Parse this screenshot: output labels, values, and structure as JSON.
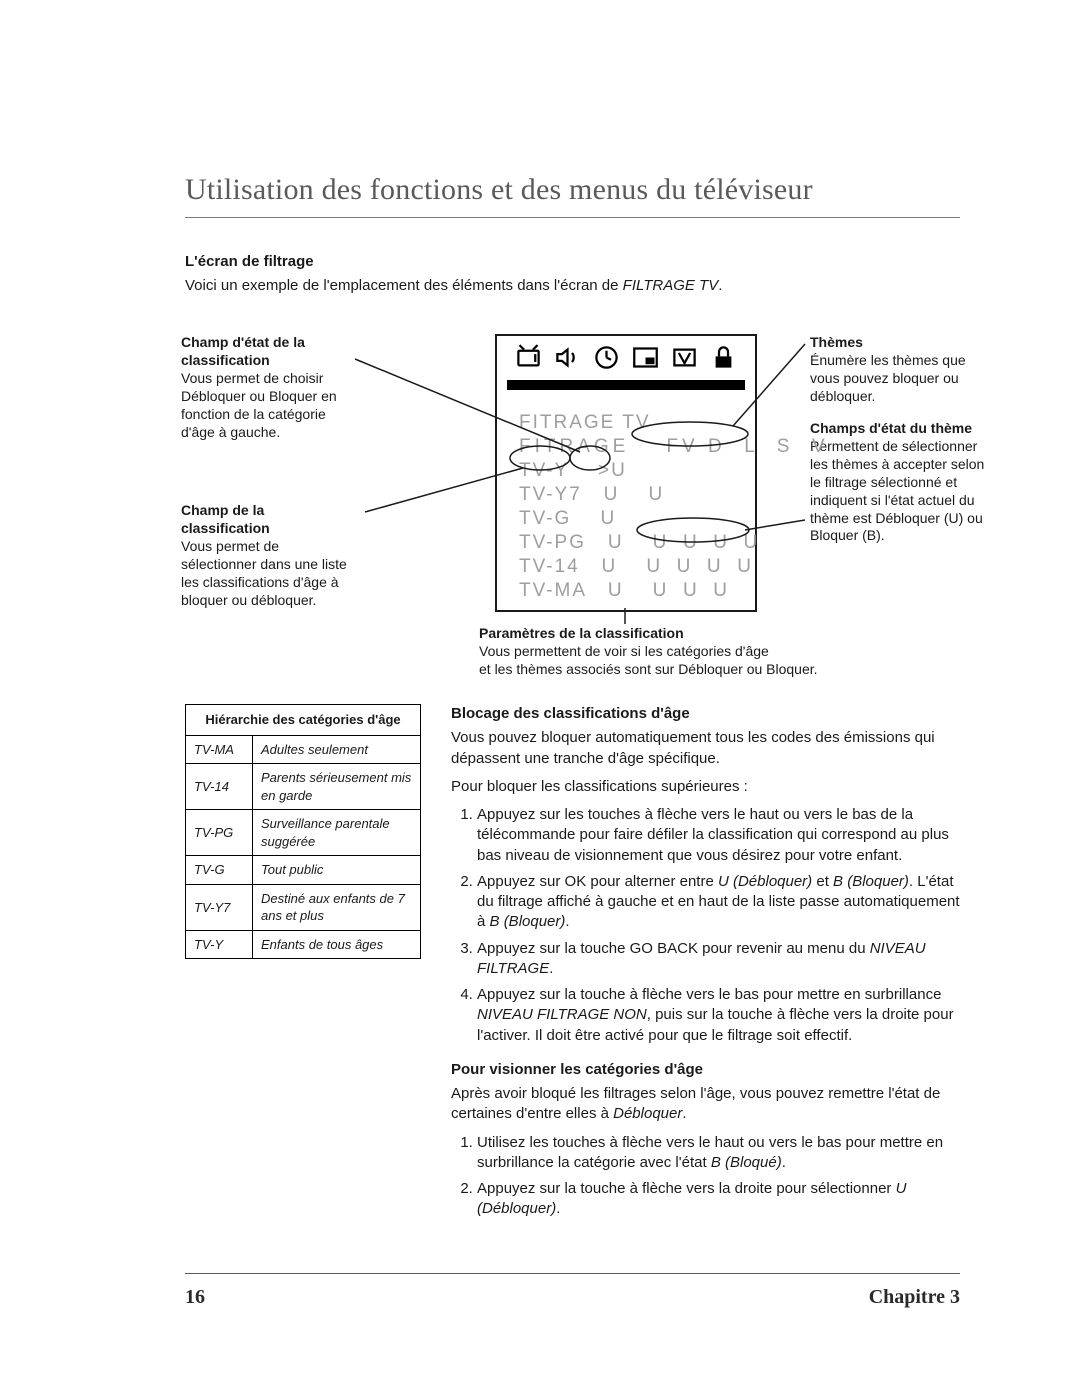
{
  "title": "Utilisation des fonctions et des menus du téléviseur",
  "section_heading": "L'écran de filtrage",
  "intro_pre": "Voici un exemple de l'emplacement des éléments dans l'écran de ",
  "intro_ital": "FILTRAGE TV",
  "intro_post": ".",
  "callouts": {
    "status_field": {
      "title": "Champ d'état de la classification",
      "body": "Vous permet de choisir Débloquer ou Bloquer en fonction de la catégorie d'âge à gauche."
    },
    "class_field": {
      "title": "Champ de la classification",
      "body": "Vous permet de sélectionner dans une liste les classifications d'âge à bloquer ou débloquer."
    },
    "themes": {
      "title": "Thèmes",
      "body": "Énumère les thèmes que vous pouvez bloquer ou débloquer."
    },
    "theme_status": {
      "title": "Champs d'état du thème",
      "body": "Permettent de sélectionner les thèmes à accepter selon le filtrage sélectionné et indiquent si l'état actuel du thème est Débloquer (U) ou Bloquer (B)."
    },
    "params": {
      "title": "Paramètres de la classification",
      "body1": "Vous permettent de voir si les catégories d'âge",
      "body2": "et les thèmes associés sont sur Débloquer ou Bloquer."
    }
  },
  "osd": {
    "title": "FITRAGE TV",
    "header": "FITRAGE    FV D  L  S  V",
    "rows": [
      {
        "label": "TV-Y",
        "col2": ">U",
        "rest": ""
      },
      {
        "label": "TV-Y7",
        "col2": "U",
        "rest": "U"
      },
      {
        "label": "TV-G",
        "col2": "U",
        "rest": ""
      },
      {
        "label": "TV-PG",
        "col2": "U",
        "rest": "U  U  U  U"
      },
      {
        "label": "TV-14",
        "col2": "U",
        "rest": "U  U  U  U"
      },
      {
        "label": "TV-MA",
        "col2": "U",
        "rest": "U  U  U"
      }
    ]
  },
  "hier": {
    "header": "Hiérarchie des catégories d'âge",
    "rows": [
      {
        "code": "TV-MA",
        "desc": "Adultes seulement"
      },
      {
        "code": "TV-14",
        "desc": "Parents sérieusement mis en garde"
      },
      {
        "code": "TV-PG",
        "desc": "Surveillance parentale suggérée"
      },
      {
        "code": "TV-G",
        "desc": "Tout public"
      },
      {
        "code": "TV-Y7",
        "desc": "Destiné aux enfants de 7 ans et plus"
      },
      {
        "code": "TV-Y",
        "desc": "Enfants de tous âges"
      }
    ]
  },
  "block": {
    "heading": "Blocage des classifications d'âge",
    "p1": "Vous pouvez bloquer automatiquement tous les codes des émissions qui dépassent une tranche d'âge spécifique.",
    "p2": "Pour bloquer les classifications supérieures :",
    "steps": [
      "Appuyez sur les touches à flèche vers le haut ou vers le bas de la télécommande pour faire défiler la classification qui correspond au plus bas niveau de visionnement que vous désirez pour votre enfant.",
      "__Appuyez sur OK pour alterner entre <i>U (Débloquer)</i> et <i>B (Bloquer)</i>. L'état du filtrage affiché à gauche et en haut de la liste passe automatiquement à <i>B (Bloquer)</i>.",
      "__Appuyez sur la touche GO BACK pour revenir au menu du <i>NIVEAU FILTRAGE</i>.",
      "__Appuyez sur la touche à flèche vers le bas pour mettre en surbrillance <i>NIVEAU FILTRAGE NON</i>, puis sur la touche à flèche vers la droite pour l'activer. Il doit être activé pour que le filtrage soit effectif."
    ]
  },
  "view": {
    "heading": "Pour visionner les catégories d'âge",
    "p1_pre": "Après avoir bloqué les filtrages selon l'âge, vous pouvez remettre l'état de certaines d'entre elles à ",
    "p1_ital": "Débloquer",
    "p1_post": ".",
    "steps": [
      "__Utilisez les touches à flèche vers le haut ou vers le bas pour mettre en surbrillance la catégorie avec l'état <i>B (Bloqué)</i>.",
      "__Appuyez sur la touche à flèche vers la droite pour sélectionner <i>U (Débloquer)</i>."
    ]
  },
  "footer": {
    "page": "16",
    "chapter": "Chapitre 3"
  }
}
